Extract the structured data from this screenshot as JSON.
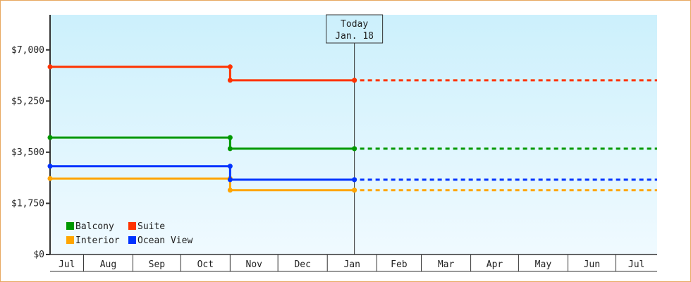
{
  "chart_data": {
    "type": "line",
    "step": true,
    "title": "",
    "xlabel": "",
    "ylabel": "",
    "ylim": [
      0,
      8200
    ],
    "y_ticks": [
      "$0",
      "$1,750",
      "$3,500",
      "$5,250",
      "$7,000"
    ],
    "y_tick_values": [
      0,
      1750,
      3500,
      5250,
      7000
    ],
    "x_ticks": [
      "Jul",
      "Aug",
      "Sep",
      "Oct",
      "Nov",
      "Dec",
      "Jan",
      "Feb",
      "Mar",
      "Apr",
      "May",
      "Jun",
      "Jul"
    ],
    "x_range": [
      "Jul 11",
      "Jul 27"
    ],
    "grid": false,
    "background": [
      "#ccf0fc",
      "#f0faff"
    ],
    "today": {
      "line1": "Today",
      "line2": "Jan. 18",
      "x": "Jan 18"
    },
    "legend_placement": "bottom-left",
    "series": [
      {
        "name": "Balcony",
        "color": "#009900",
        "x": [
          "Jul 11",
          "Nov 1",
          "Jan 18"
        ],
        "values": [
          4000,
          3620,
          3620
        ],
        "projected_to": "Jul 27"
      },
      {
        "name": "Suite",
        "color": "#ff3300",
        "x": [
          "Jul 11",
          "Nov 1",
          "Jan 18"
        ],
        "values": [
          6420,
          5960,
          5960
        ],
        "projected_to": "Jul 27"
      },
      {
        "name": "Interior",
        "color": "#ffa500",
        "x": [
          "Jul 11",
          "Nov 1",
          "Jan 18"
        ],
        "values": [
          2600,
          2200,
          2200
        ],
        "projected_to": "Jul 27"
      },
      {
        "name": "Ocean View",
        "color": "#0033ff",
        "x": [
          "Jul 11",
          "Nov 1",
          "Jan 18"
        ],
        "values": [
          3020,
          2560,
          2560
        ],
        "projected_to": "Jul 27"
      }
    ]
  }
}
